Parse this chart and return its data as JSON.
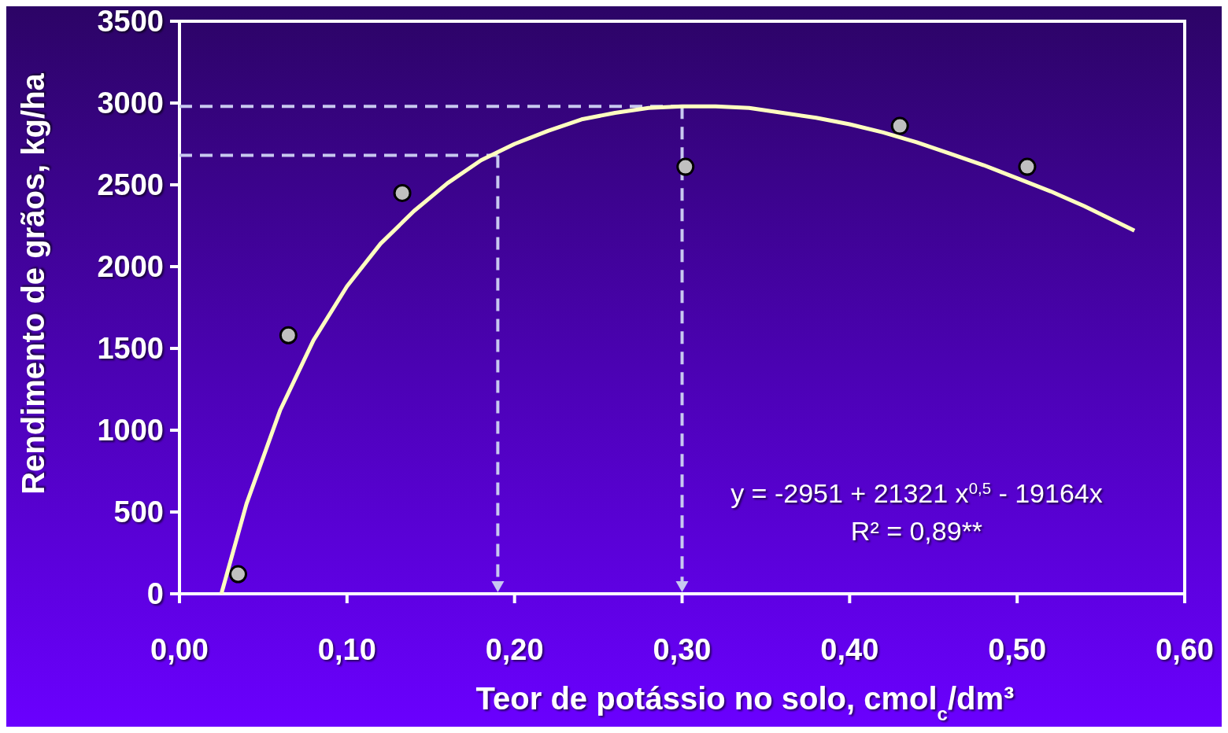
{
  "chart_data": {
    "type": "scatter",
    "xlabel": "Teor de potássio no solo, cmol$_{c}$/dm³",
    "ylabel": "Rendimento de grãos, kg/ha",
    "xlim": [
      0,
      0.6
    ],
    "ylim": [
      0,
      3500
    ],
    "xticks": [
      {
        "value": 0,
        "label": "0,00"
      },
      {
        "value": 0.1,
        "label": "0,10"
      },
      {
        "value": 0.2,
        "label": "0,20"
      },
      {
        "value": 0.3,
        "label": "0,30"
      },
      {
        "value": 0.4,
        "label": "0,40"
      },
      {
        "value": 0.5,
        "label": "0,50"
      },
      {
        "value": 0.6,
        "label": "0,60"
      }
    ],
    "yticks": [
      0,
      500,
      1000,
      1500,
      2000,
      2500,
      3000,
      3500
    ],
    "grid": false,
    "series": [
      {
        "color": "#c0c0c0",
        "marker": "circle",
        "x": [
          0.035,
          0.065,
          0.133,
          0.302,
          0.43,
          0.506
        ],
        "values": [
          120,
          1580,
          2450,
          2610,
          2860,
          2610
        ]
      },
      {
        "type": "line",
        "color": "#ffffc0",
        "marker": "none",
        "line_style": "solid",
        "x": [
          0.025,
          0.04,
          0.06,
          0.08,
          0.1,
          0.12,
          0.14,
          0.16,
          0.18,
          0.2,
          0.22,
          0.24,
          0.26,
          0.28,
          0.3,
          0.32,
          0.34,
          0.36,
          0.38,
          0.4,
          0.42,
          0.44,
          0.46,
          0.48,
          0.5,
          0.52,
          0.54,
          0.57
        ],
        "values": [
          0,
          550,
          1120,
          1550,
          1880,
          2140,
          2340,
          2510,
          2650,
          2750,
          2830,
          2900,
          2940,
          2970,
          2980,
          2980,
          2970,
          2940,
          2910,
          2870,
          2820,
          2760,
          2690,
          2620,
          2540,
          2460,
          2370,
          2220
        ]
      }
    ],
    "ref_lines": [
      {
        "axis": "y",
        "value": 2680,
        "color": "#c8c8f0",
        "line_style": "dashed"
      },
      {
        "axis": "y",
        "value": 2980,
        "color": "#c8c8f0",
        "line_style": "dashed"
      },
      {
        "axis": "x",
        "value": 0.19,
        "color": "#c8c8f0",
        "line_style": "dashed"
      },
      {
        "axis": "x",
        "value": 0.3,
        "color": "#c8c8f0",
        "line_style": "dashed"
      }
    ],
    "annotations": [
      "y = -2951 + 21321 x$^{0,5}$ - 19164x",
      "R² = 0,89**"
    ]
  }
}
